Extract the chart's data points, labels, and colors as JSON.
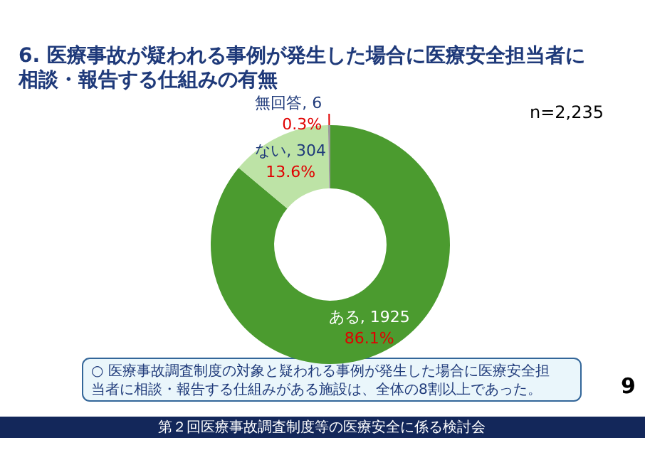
{
  "chart_data": {
    "type": "donut",
    "title": "6. 医療事故が疑われる事例が発生した場合に医療安全担当者に相談・報告する仕組みの有無",
    "categories": [
      "ある, 1925",
      "ない, 304",
      "無回答, 6"
    ],
    "values": [
      86.1,
      13.6,
      0.3
    ],
    "colors": [
      "#4b9b2f",
      "#bde3a6",
      "#9a9a9a"
    ],
    "value_labels": [
      "86.1%",
      "13.6%",
      "0.3%"
    ],
    "legend": false,
    "annotations": [
      "n=2,235",
      "○ 医療事故調査制度の対象と疑われる事例が発生した場合に医療安全担当者に相談・報告する仕組みがある施設は、全体の8割以上であった。",
      "9",
      "第２回医療事故調査制度等の医療安全に係る検討会"
    ]
  }
}
